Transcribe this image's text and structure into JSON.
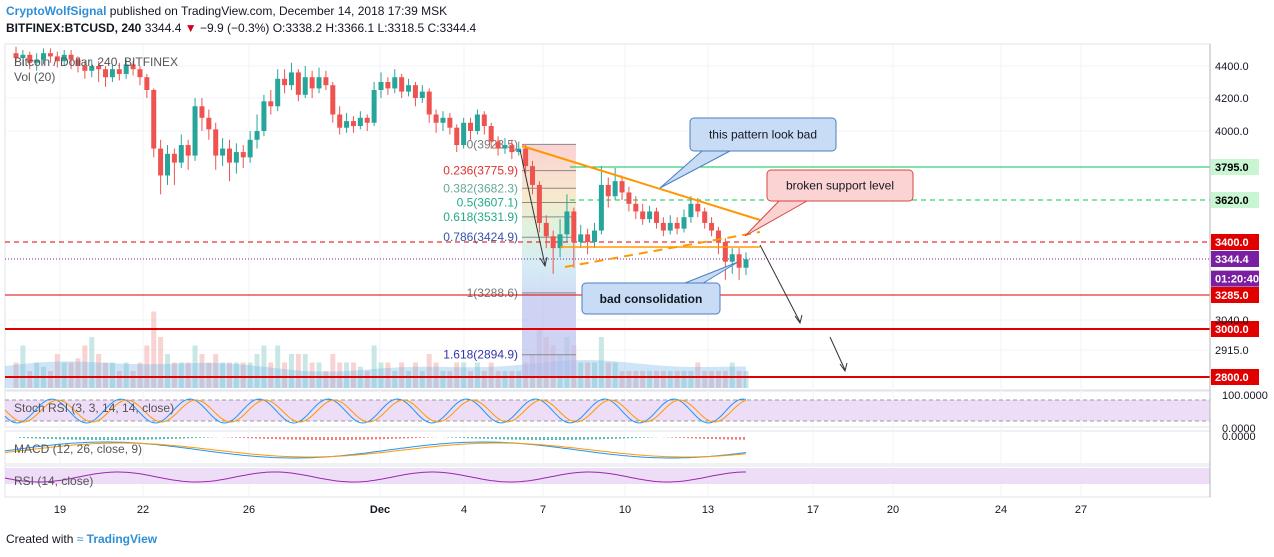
{
  "header": {
    "brand": "CryptoWolfSignal",
    "published": "published on TradingView.com, December 14, 2018 17:39 MSK",
    "symbol": "BITFINEX:BTCUSD, 240",
    "last": "3344.4",
    "change": "−9.9 (−0.3%)",
    "open": "O:3338.2",
    "high": "H:3366.1",
    "low": "L:3318.5",
    "close": "C:3344.4"
  },
  "footer": {
    "created": "Created with",
    "tv": "TradingView"
  },
  "colors": {
    "up": "#26a69a",
    "down": "#ef5350",
    "fib": "#9b9bd6",
    "trend": "#ff9800",
    "red": "#e00000",
    "green": "#00c853",
    "callout": "#c8dcf5",
    "callout_red": "#fbd3d3"
  },
  "chart_data": {
    "type": "candlestick",
    "title": "Bitcoin / Dollar, 240, BITFINEX",
    "volume_label": "Vol (20)",
    "x_ticks": [
      "19",
      "22",
      "26",
      "Dec",
      "4",
      "7",
      "10",
      "13",
      "17",
      "20",
      "24",
      "27"
    ],
    "y_ticks": [
      "4400.0",
      "4200.0",
      "4000.0",
      "3040.0",
      "2915.0"
    ],
    "ylim": [
      2780,
      4500
    ],
    "price_levels": [
      {
        "label": "3795.0",
        "value": 3795,
        "style": "solid",
        "color": "green"
      },
      {
        "label": "3620.0",
        "value": 3620,
        "style": "dashed",
        "color": "green"
      },
      {
        "label": "3400.0",
        "value": 3400,
        "style": "dashed",
        "color": "red"
      },
      {
        "label": "3344.4",
        "value": 3344.4,
        "style": "dotted",
        "color": "last"
      },
      {
        "label": "01:20:40",
        "value": 3312,
        "style": "none",
        "color": "timer"
      },
      {
        "label": "3285.0",
        "value": 3285,
        "style": "solid",
        "color": "red"
      },
      {
        "label": "3000.0",
        "value": 3000,
        "style": "solid",
        "color": "red"
      },
      {
        "label": "2800.0",
        "value": 2800,
        "style": "solid",
        "color": "red"
      }
    ],
    "fibonacci": [
      {
        "label": "0(3923.5)",
        "value": 3923.5
      },
      {
        "label": "0.236(3775.9)",
        "value": 3775.9
      },
      {
        "label": "0.382(3682.3)",
        "value": 3682.3
      },
      {
        "label": "0.5(3607.1)",
        "value": 3607.1
      },
      {
        "label": "0.618(3531.9)",
        "value": 3531.9
      },
      {
        "label": "0.786(3424.9)",
        "value": 3424.9
      },
      {
        "label": "1(3288.6)",
        "value": 3288.6
      },
      {
        "label": "1.618(2894.9)",
        "value": 2894.9
      }
    ],
    "annotations": [
      "this pattern look bad",
      "broken support level",
      "bad consolidation"
    ],
    "candles": [
      {
        "o": 4480,
        "c": 4450,
        "h": 4520,
        "l": 4420
      },
      {
        "o": 4450,
        "c": 4470,
        "h": 4500,
        "l": 4400
      },
      {
        "o": 4470,
        "c": 4420,
        "h": 4490,
        "l": 4380
      },
      {
        "o": 4420,
        "c": 4440,
        "h": 4480,
        "l": 4370
      },
      {
        "o": 4440,
        "c": 4480,
        "h": 4510,
        "l": 4410
      },
      {
        "o": 4480,
        "c": 4460,
        "h": 4510,
        "l": 4420
      },
      {
        "o": 4460,
        "c": 4430,
        "h": 4490,
        "l": 4390
      },
      {
        "o": 4430,
        "c": 4470,
        "h": 4500,
        "l": 4400
      },
      {
        "o": 4470,
        "c": 4440,
        "h": 4500,
        "l": 4380
      },
      {
        "o": 4440,
        "c": 4400,
        "h": 4460,
        "l": 4360
      },
      {
        "o": 4400,
        "c": 4370,
        "h": 4430,
        "l": 4320
      },
      {
        "o": 4370,
        "c": 4400,
        "h": 4440,
        "l": 4330
      },
      {
        "o": 4400,
        "c": 4380,
        "h": 4430,
        "l": 4300
      },
      {
        "o": 4380,
        "c": 4330,
        "h": 4400,
        "l": 4270
      },
      {
        "o": 4330,
        "c": 4380,
        "h": 4410,
        "l": 4300
      },
      {
        "o": 4380,
        "c": 4350,
        "h": 4420,
        "l": 4310
      },
      {
        "o": 4350,
        "c": 4410,
        "h": 4440,
        "l": 4320
      },
      {
        "o": 4410,
        "c": 4380,
        "h": 4430,
        "l": 4340
      },
      {
        "o": 4380,
        "c": 4330,
        "h": 4400,
        "l": 4280
      },
      {
        "o": 4330,
        "c": 4250,
        "h": 4350,
        "l": 4200
      },
      {
        "o": 4250,
        "c": 3900,
        "h": 4260,
        "l": 3850
      },
      {
        "o": 3900,
        "c": 3750,
        "h": 3950,
        "l": 3650
      },
      {
        "o": 3750,
        "c": 3870,
        "h": 3920,
        "l": 3700
      },
      {
        "o": 3870,
        "c": 3820,
        "h": 3900,
        "l": 3700
      },
      {
        "o": 3820,
        "c": 3920,
        "h": 3980,
        "l": 3790
      },
      {
        "o": 3920,
        "c": 3860,
        "h": 3950,
        "l": 3780
      },
      {
        "o": 3860,
        "c": 4150,
        "h": 4200,
        "l": 3830
      },
      {
        "o": 4150,
        "c": 4080,
        "h": 4200,
        "l": 4000
      },
      {
        "o": 4080,
        "c": 4010,
        "h": 4130,
        "l": 3950
      },
      {
        "o": 4010,
        "c": 3860,
        "h": 4050,
        "l": 3780
      },
      {
        "o": 3860,
        "c": 3900,
        "h": 3960,
        "l": 3800
      },
      {
        "o": 3900,
        "c": 3820,
        "h": 3950,
        "l": 3720
      },
      {
        "o": 3820,
        "c": 3880,
        "h": 3930,
        "l": 3760
      },
      {
        "o": 3880,
        "c": 3850,
        "h": 3920,
        "l": 3790
      },
      {
        "o": 3850,
        "c": 3950,
        "h": 4000,
        "l": 3820
      },
      {
        "o": 3950,
        "c": 4000,
        "h": 4100,
        "l": 3900
      },
      {
        "o": 4000,
        "c": 4180,
        "h": 4220,
        "l": 3970
      },
      {
        "o": 4180,
        "c": 4150,
        "h": 4250,
        "l": 4100
      },
      {
        "o": 4150,
        "c": 4320,
        "h": 4380,
        "l": 4120
      },
      {
        "o": 4320,
        "c": 4280,
        "h": 4380,
        "l": 4230
      },
      {
        "o": 4280,
        "c": 4360,
        "h": 4420,
        "l": 4250
      },
      {
        "o": 4360,
        "c": 4220,
        "h": 4380,
        "l": 4180
      },
      {
        "o": 4220,
        "c": 4330,
        "h": 4400,
        "l": 4200
      },
      {
        "o": 4330,
        "c": 4260,
        "h": 4370,
        "l": 4200
      },
      {
        "o": 4260,
        "c": 4330,
        "h": 4390,
        "l": 4230
      },
      {
        "o": 4330,
        "c": 4280,
        "h": 4370,
        "l": 4250
      },
      {
        "o": 4280,
        "c": 4100,
        "h": 4300,
        "l": 4050
      },
      {
        "o": 4100,
        "c": 4020,
        "h": 4150,
        "l": 3980
      },
      {
        "o": 4020,
        "c": 4060,
        "h": 4110,
        "l": 3990
      },
      {
        "o": 4060,
        "c": 4030,
        "h": 4090,
        "l": 3990
      },
      {
        "o": 4030,
        "c": 4080,
        "h": 4120,
        "l": 4010
      },
      {
        "o": 4080,
        "c": 4050,
        "h": 4100,
        "l": 4000
      },
      {
        "o": 4050,
        "c": 4250,
        "h": 4300,
        "l": 4030
      },
      {
        "o": 4250,
        "c": 4300,
        "h": 4360,
        "l": 4200
      },
      {
        "o": 4300,
        "c": 4260,
        "h": 4330,
        "l": 4220
      },
      {
        "o": 4260,
        "c": 4330,
        "h": 4380,
        "l": 4230
      },
      {
        "o": 4330,
        "c": 4240,
        "h": 4350,
        "l": 4200
      },
      {
        "o": 4240,
        "c": 4280,
        "h": 4320,
        "l": 4210
      },
      {
        "o": 4280,
        "c": 4200,
        "h": 4300,
        "l": 4150
      },
      {
        "o": 4200,
        "c": 4240,
        "h": 4280,
        "l": 4170
      },
      {
        "o": 4240,
        "c": 4100,
        "h": 4260,
        "l": 4050
      },
      {
        "o": 4100,
        "c": 4050,
        "h": 4130,
        "l": 3990
      },
      {
        "o": 4050,
        "c": 4080,
        "h": 4120,
        "l": 4000
      },
      {
        "o": 4080,
        "c": 4020,
        "h": 4110,
        "l": 3980
      },
      {
        "o": 4020,
        "c": 3920,
        "h": 4040,
        "l": 3880
      },
      {
        "o": 3920,
        "c": 4050,
        "h": 4080,
        "l": 3900
      },
      {
        "o": 4050,
        "c": 4000,
        "h": 4080,
        "l": 3950
      },
      {
        "o": 4000,
        "c": 4100,
        "h": 4130,
        "l": 3980
      },
      {
        "o": 4100,
        "c": 4030,
        "h": 4120,
        "l": 3980
      },
      {
        "o": 4030,
        "c": 3940,
        "h": 4050,
        "l": 3900
      },
      {
        "o": 3940,
        "c": 3900,
        "h": 3970,
        "l": 3860
      },
      {
        "o": 3900,
        "c": 3920,
        "h": 3960,
        "l": 3870
      },
      {
        "o": 3920,
        "c": 3880,
        "h": 3950,
        "l": 3840
      },
      {
        "o": 3880,
        "c": 3900,
        "h": 3940,
        "l": 3860
      },
      {
        "o": 3900,
        "c": 3800,
        "h": 3920,
        "l": 3760
      },
      {
        "o": 3800,
        "c": 3700,
        "h": 3830,
        "l": 3650
      },
      {
        "o": 3700,
        "c": 3500,
        "h": 3720,
        "l": 3450
      },
      {
        "o": 3500,
        "c": 3430,
        "h": 3540,
        "l": 3380
      },
      {
        "o": 3430,
        "c": 3380,
        "h": 3460,
        "l": 3320
      },
      {
        "o": 3380,
        "c": 3440,
        "h": 3520,
        "l": 3350
      },
      {
        "o": 3440,
        "c": 3560,
        "h": 3650,
        "l": 3400
      },
      {
        "o": 3560,
        "c": 3400,
        "h": 3580,
        "l": 3330
      },
      {
        "o": 3400,
        "c": 3440,
        "h": 3490,
        "l": 3380
      },
      {
        "o": 3440,
        "c": 3400,
        "h": 3470,
        "l": 3360
      },
      {
        "o": 3400,
        "c": 3460,
        "h": 3500,
        "l": 3380
      },
      {
        "o": 3460,
        "c": 3700,
        "h": 3800,
        "l": 3440
      },
      {
        "o": 3700,
        "c": 3640,
        "h": 3740,
        "l": 3580
      },
      {
        "o": 3640,
        "c": 3720,
        "h": 3790,
        "l": 3620
      },
      {
        "o": 3720,
        "c": 3660,
        "h": 3750,
        "l": 3620
      },
      {
        "o": 3660,
        "c": 3600,
        "h": 3690,
        "l": 3560
      },
      {
        "o": 3600,
        "c": 3560,
        "h": 3640,
        "l": 3520
      },
      {
        "o": 3560,
        "c": 3520,
        "h": 3600,
        "l": 3490
      },
      {
        "o": 3520,
        "c": 3560,
        "h": 3590,
        "l": 3500
      },
      {
        "o": 3560,
        "c": 3500,
        "h": 3580,
        "l": 3470
      },
      {
        "o": 3500,
        "c": 3460,
        "h": 3530,
        "l": 3430
      },
      {
        "o": 3460,
        "c": 3500,
        "h": 3540,
        "l": 3440
      },
      {
        "o": 3500,
        "c": 3470,
        "h": 3530,
        "l": 3440
      },
      {
        "o": 3470,
        "c": 3530,
        "h": 3570,
        "l": 3450
      },
      {
        "o": 3530,
        "c": 3600,
        "h": 3640,
        "l": 3500
      },
      {
        "o": 3600,
        "c": 3560,
        "h": 3630,
        "l": 3530
      },
      {
        "o": 3560,
        "c": 3500,
        "h": 3580,
        "l": 3470
      },
      {
        "o": 3500,
        "c": 3460,
        "h": 3530,
        "l": 3430
      },
      {
        "o": 3460,
        "c": 3400,
        "h": 3480,
        "l": 3360
      },
      {
        "o": 3400,
        "c": 3340,
        "h": 3420,
        "l": 3310
      },
      {
        "o": 3340,
        "c": 3360,
        "h": 3380,
        "l": 3320
      },
      {
        "o": 3360,
        "c": 3330,
        "h": 3380,
        "l": 3310
      },
      {
        "o": 3330,
        "c": 3344,
        "h": 3366,
        "l": 3318
      }
    ],
    "volume": [
      0.3,
      0.5,
      0.2,
      0.3,
      0.25,
      0.2,
      0.4,
      0.3,
      0.3,
      0.35,
      0.5,
      0.6,
      0.4,
      0.3,
      0.3,
      0.2,
      0.3,
      0.2,
      0.3,
      0.5,
      0.9,
      0.6,
      0.4,
      0.3,
      0.3,
      0.3,
      0.5,
      0.4,
      0.3,
      0.4,
      0.3,
      0.3,
      0.3,
      0.3,
      0.3,
      0.4,
      0.5,
      0.3,
      0.5,
      0.3,
      0.4,
      0.4,
      0.4,
      0.3,
      0.3,
      0.2,
      0.4,
      0.3,
      0.3,
      0.3,
      0.25,
      0.2,
      0.5,
      0.3,
      0.3,
      0.2,
      0.3,
      0.2,
      0.3,
      0.2,
      0.4,
      0.3,
      0.2,
      0.2,
      0.3,
      0.3,
      0.2,
      0.3,
      0.2,
      0.3,
      0.2,
      0.2,
      0.2,
      0.2,
      0.3,
      0.4,
      0.7,
      0.6,
      0.5,
      0.4,
      0.6,
      0.5,
      0.3,
      0.3,
      0.3,
      0.6,
      0.3,
      0.3,
      0.2,
      0.2,
      0.2,
      0.2,
      0.2,
      0.2,
      0.2,
      0.2,
      0.2,
      0.2,
      0.2,
      0.3,
      0.2,
      0.2,
      0.2,
      0.2,
      0.3,
      0.2,
      0.2,
      0.2,
      0.2
    ],
    "indicators": [
      {
        "name": "Stoch RSI (3, 3, 14, 14, close)",
        "levels": [
          "100.0000",
          "0.0000"
        ]
      },
      {
        "name": "MACD (12, 26, close, 9)",
        "levels": [
          "0.0000"
        ]
      },
      {
        "name": "RSI (14, close)",
        "levels": []
      }
    ]
  }
}
